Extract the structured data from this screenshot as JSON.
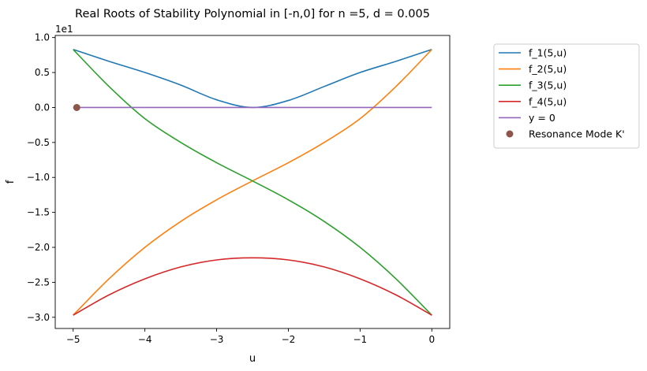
{
  "chart_data": {
    "type": "line",
    "title": "Real Roots of Stability Polynomial in [-n,0] for n =5, d = 0.005",
    "xlabel": "u",
    "ylabel": "f",
    "y_offset_label": "1e1",
    "xlim": [
      -5.25,
      0.25
    ],
    "ylim": [
      -3.16,
      1.03
    ],
    "x_ticks": [
      -5,
      -4,
      -3,
      -2,
      -1,
      0
    ],
    "x_tick_labels": [
      "−5",
      "−4",
      "−3",
      "−2",
      "−1",
      "0"
    ],
    "y_ticks": [
      -3.0,
      -2.5,
      -2.0,
      -1.5,
      -1.0,
      -0.5,
      0.0,
      0.5,
      1.0
    ],
    "y_tick_labels": [
      "−3.0",
      "−2.5",
      "−2.0",
      "−1.5",
      "−1.0",
      "−0.5",
      "0.0",
      "0.5",
      "1.0"
    ],
    "grid": false,
    "legend_position": "outside-top-right",
    "series": [
      {
        "name": "f_1(5,u)",
        "color": "#1f77b4",
        "x": [
          -5,
          -4.5,
          -4,
          -3.5,
          -3,
          -2.5,
          -2,
          -1.5,
          -1,
          -0.5,
          0
        ],
        "y": [
          0.83,
          0.66,
          0.5,
          0.32,
          0.11,
          0.0,
          0.1,
          0.3,
          0.5,
          0.66,
          0.83
        ]
      },
      {
        "name": "f_2(5,u)",
        "color": "#ff7f0e",
        "x": [
          -5,
          -4.5,
          -4,
          -3.5,
          -3,
          -2.5,
          -2,
          -1.5,
          -1,
          -0.5,
          0
        ],
        "y": [
          -2.97,
          -2.45,
          -2.0,
          -1.63,
          -1.32,
          -1.05,
          -0.79,
          -0.5,
          -0.16,
          0.3,
          0.83
        ]
      },
      {
        "name": "f_3(5,u)",
        "color": "#2ca02c",
        "x": [
          -5,
          -4.5,
          -4,
          -3.5,
          -3,
          -2.5,
          -2,
          -1.5,
          -1,
          -0.5,
          0
        ],
        "y": [
          0.83,
          0.3,
          -0.16,
          -0.5,
          -0.79,
          -1.05,
          -1.32,
          -1.63,
          -2.0,
          -2.45,
          -2.97
        ]
      },
      {
        "name": "f_4(5,u)",
        "color": "#d62728",
        "x": [
          -5,
          -4.5,
          -4,
          -3.5,
          -3,
          -2.5,
          -2,
          -1.5,
          -1,
          -0.5,
          0
        ],
        "y": [
          -2.97,
          -2.68,
          -2.45,
          -2.28,
          -2.18,
          -2.15,
          -2.18,
          -2.28,
          -2.45,
          -2.68,
          -2.97
        ]
      },
      {
        "name": "y = 0",
        "color": "#9467bd",
        "x": [
          -5,
          0
        ],
        "y": [
          0,
          0
        ]
      }
    ],
    "points": [
      {
        "name": "Resonance Mode K'",
        "color": "#8c564b",
        "x": -4.95,
        "y": 0
      }
    ]
  }
}
